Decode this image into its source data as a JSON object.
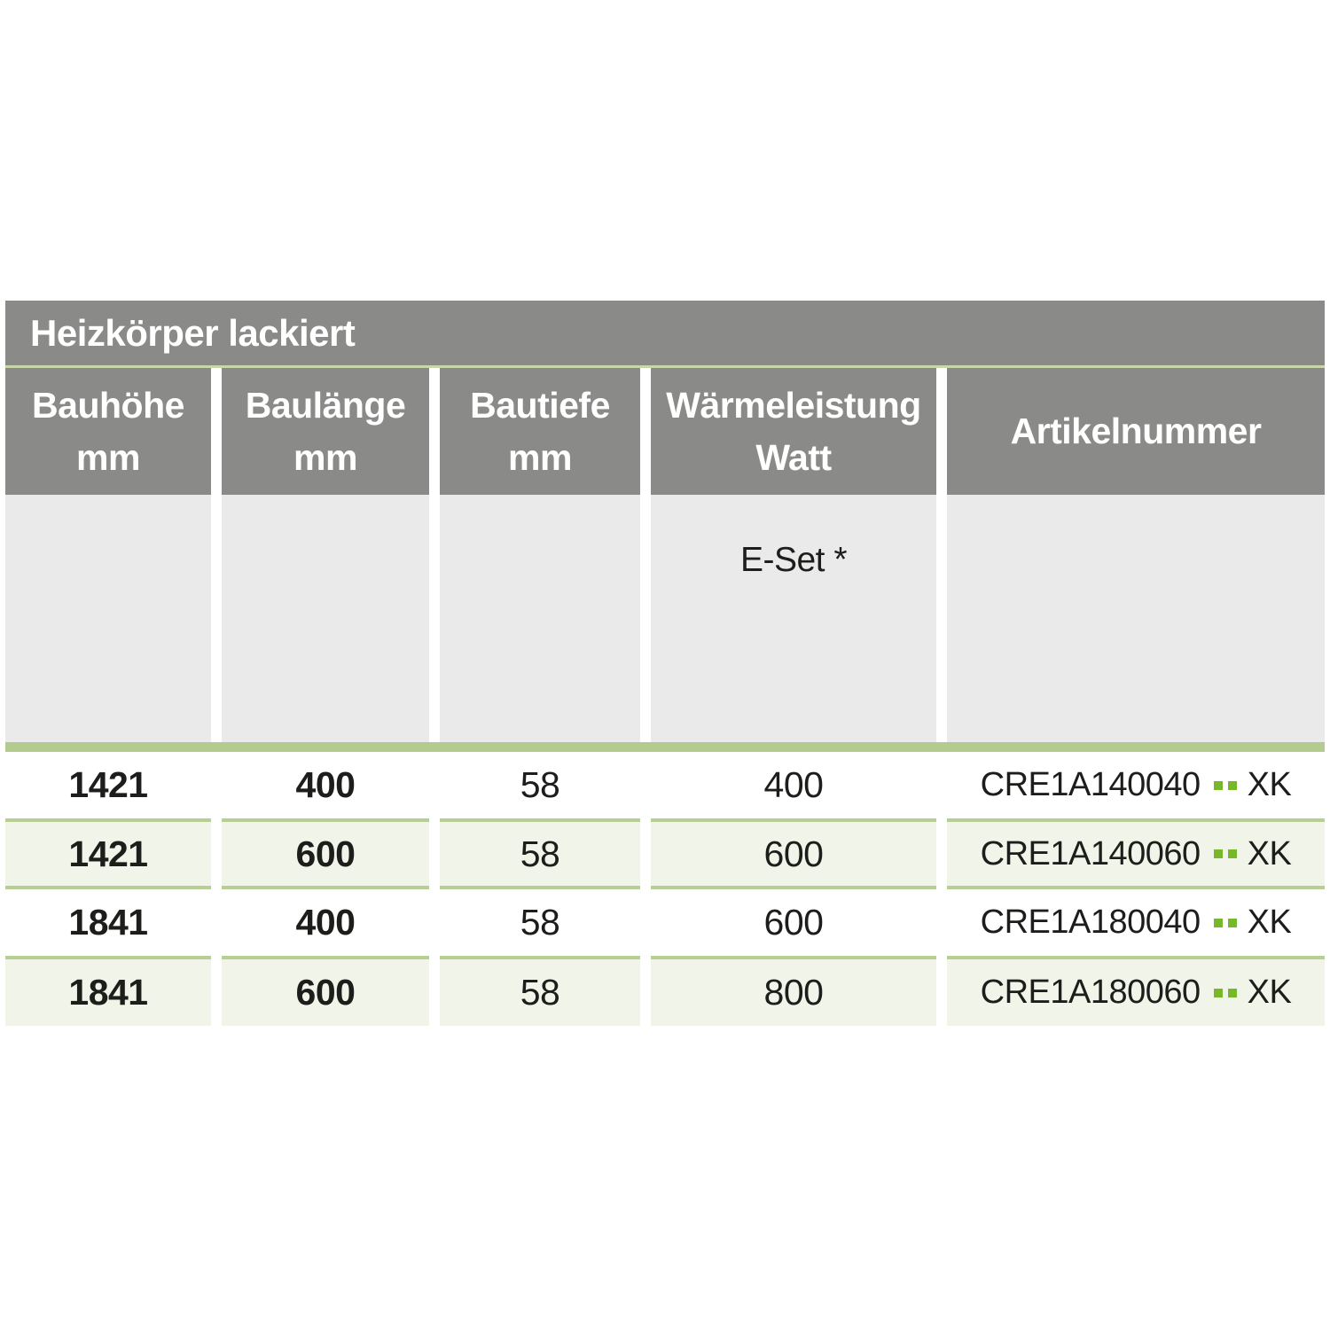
{
  "title": "Heizkörper lackiert",
  "colors": {
    "header_gray": "#8a8a88",
    "hairline_green": "#c8d7a8",
    "subheader_gray": "#eaeaea",
    "bar_green": "#b3cb8c",
    "row_green_bg": "#f1f4e8",
    "row_green_border": "#b7cf92",
    "dot_green": "#76b82a",
    "text_dark": "#1d1d1b"
  },
  "columns": [
    {
      "label": "Bauhöhe",
      "unit": "mm"
    },
    {
      "label": "Baulänge",
      "unit": "mm"
    },
    {
      "label": "Bautiefe",
      "unit": "mm"
    },
    {
      "label": "Wärmeleistung",
      "unit": "Watt"
    },
    {
      "label": "Artikelnummer",
      "unit": ""
    }
  ],
  "subheader": {
    "e_set_label": "E-Set *"
  },
  "rows": [
    {
      "bauhoehe": "1421",
      "baulaenge": "400",
      "bautiefe": "58",
      "watt": "400",
      "artikel_prefix": "CRE1A140040",
      "artikel_suffix": "XK"
    },
    {
      "bauhoehe": "1421",
      "baulaenge": "600",
      "bautiefe": "58",
      "watt": "600",
      "artikel_prefix": "CRE1A140060",
      "artikel_suffix": "XK"
    },
    {
      "bauhoehe": "1841",
      "baulaenge": "400",
      "bautiefe": "58",
      "watt": "600",
      "artikel_prefix": "CRE1A180040",
      "artikel_suffix": "XK"
    },
    {
      "bauhoehe": "1841",
      "baulaenge": "600",
      "bautiefe": "58",
      "watt": "800",
      "artikel_prefix": "CRE1A180060",
      "artikel_suffix": "XK"
    }
  ]
}
